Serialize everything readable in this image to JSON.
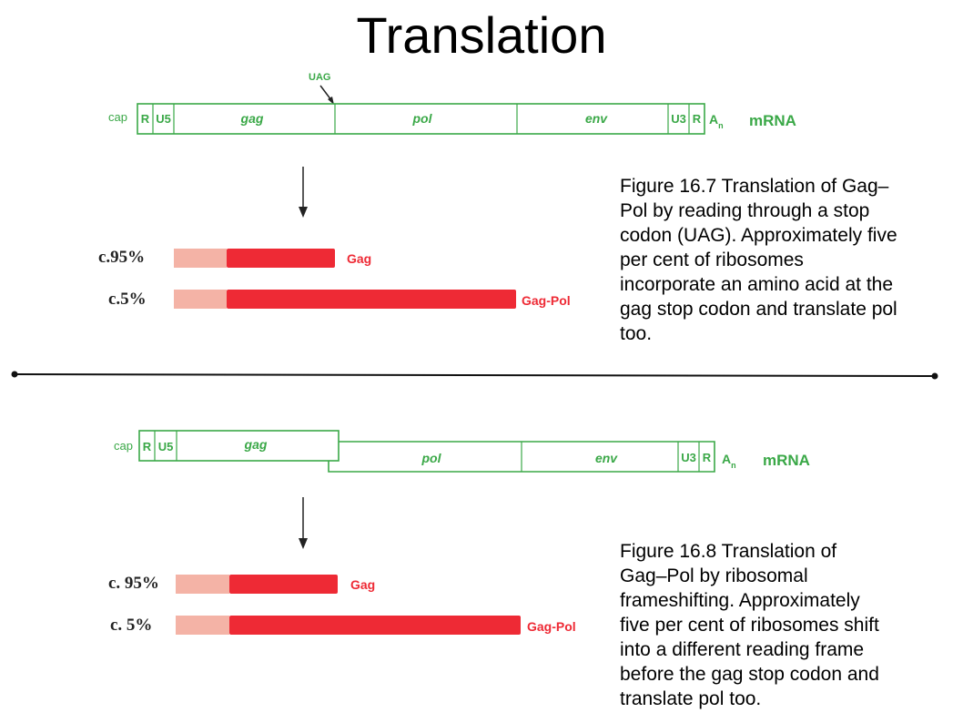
{
  "title": "Translation",
  "colors": {
    "mrna": "#3aa847",
    "protein": "#ee2a35",
    "leader": "#f4b3a6",
    "text": "#000000"
  },
  "figure1": {
    "stop_codon": "UAG",
    "mrna": {
      "cap": "cap",
      "segments": [
        "R",
        "U5",
        "gag",
        "pol",
        "env",
        "U3",
        "R"
      ],
      "tail": "A",
      "tail_sub": "n",
      "label": "mRNA"
    },
    "products": [
      {
        "percent": "c.95%",
        "label": "Gag",
        "fraction": 0.95
      },
      {
        "percent": "c.5%",
        "label": "Gag-Pol",
        "fraction": 0.05
      }
    ],
    "caption": [
      "Figure 16.7 Translation of Gag–",
      "Pol by reading through a stop",
      "codon (UAG). Approximately five",
      "per cent of ribosomes",
      "incorporate an amino acid at the",
      "gag stop codon and translate pol",
      "too."
    ]
  },
  "figure2": {
    "mrna": {
      "cap": "cap",
      "segments": [
        "R",
        "U5",
        "gag",
        "pol",
        "env",
        "U3",
        "R"
      ],
      "tail": "A",
      "tail_sub": "n",
      "label": "mRNA"
    },
    "products": [
      {
        "percent": "c. 95%",
        "label": "Gag",
        "fraction": 0.95
      },
      {
        "percent": "c. 5%",
        "label": "Gag-Pol",
        "fraction": 0.05
      }
    ],
    "caption": [
      "Figure 16.8 Translation of",
      "Gag–Pol by ribosomal",
      "frameshifting. Approximately",
      "five per cent of ribosomes shift",
      "into a different reading frame",
      "before the gag stop codon and",
      "translate pol too."
    ]
  }
}
